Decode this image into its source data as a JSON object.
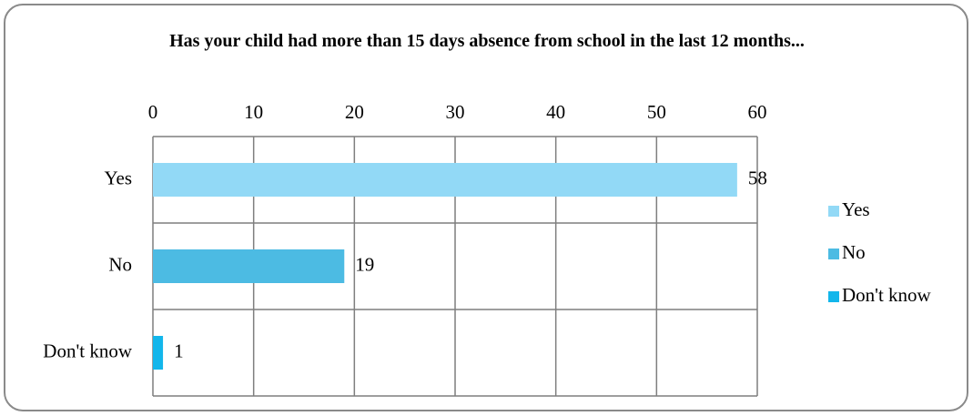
{
  "chart_data": {
    "type": "bar",
    "orientation": "horizontal",
    "title": "Has your child had more than 15 days absence from school in the last 12 months...",
    "categories": [
      "Yes",
      "No",
      "Don't know"
    ],
    "values": [
      58,
      19,
      1
    ],
    "colors": [
      "#92d9f6",
      "#4cbbe3",
      "#12b6eb"
    ],
    "xlim": [
      0,
      60
    ],
    "xticks": [
      0,
      10,
      20,
      30,
      40,
      50,
      60
    ],
    "grid": true,
    "legend": "right"
  }
}
